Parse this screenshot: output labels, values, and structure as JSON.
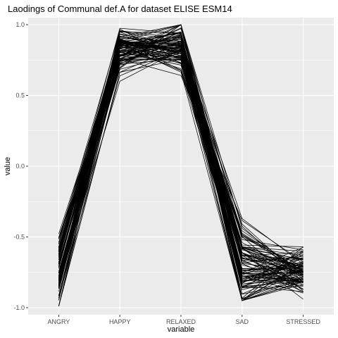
{
  "chart_data": {
    "type": "line",
    "title": "Laodings of Communal def.A for dataset ELISE ESM14",
    "xlabel": "variable",
    "ylabel": "value",
    "categories": [
      "ANGRY",
      "HAPPY",
      "RELAXED",
      "SAD",
      "STRESSED"
    ],
    "y_ticks": [
      "-1.0",
      "-0.5",
      "0.0",
      "0.5",
      "1.0"
    ],
    "ylim": [
      -1.05,
      1.05
    ],
    "grid": true,
    "series_count": 100,
    "series_ranges": {
      "ANGRY": [
        -0.99,
        -0.43
      ],
      "HAPPY": [
        0.6,
        0.98
      ],
      "RELAXED": [
        0.58,
        1.0
      ],
      "SAD": [
        -0.95,
        -0.35
      ],
      "STRESSED": [
        -0.95,
        -0.57
      ]
    },
    "series_typical": {
      "ANGRY": -0.72,
      "HAPPY": 0.82,
      "RELAXED": 0.84,
      "SAD": -0.7,
      "STRESSED": -0.74
    },
    "colors": {
      "panel": "#ebebeb",
      "grid": "#ffffff",
      "line": "#000000"
    }
  }
}
